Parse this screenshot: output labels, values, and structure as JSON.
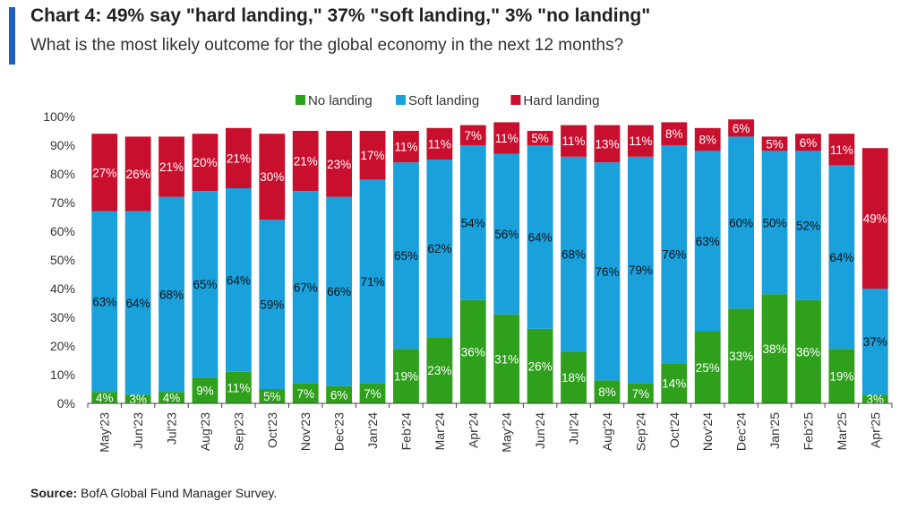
{
  "title": "Chart 4: 49% say \"hard landing,\" 37% \"soft landing,\" 3% \"no landing\"",
  "subtitle": "What is the most likely outcome for the global economy in the next 12 months?",
  "source_label": "Source:",
  "source_text": " BofA Global Fund Manager Survey.",
  "chart_data": {
    "type": "bar",
    "stacked": true,
    "categories": [
      "May'23",
      "Jun'23",
      "Jul'23",
      "Aug'23",
      "Sep'23",
      "Oct'23",
      "Nov'23",
      "Dec'23",
      "Jan'24",
      "Feb'24",
      "Mar'24",
      "Apr'24",
      "May'24",
      "Jun'24",
      "Jul'24",
      "Aug'24",
      "Sep'24",
      "Oct'24",
      "Nov'24",
      "Dec'24",
      "Jan'25",
      "Feb'25",
      "Mar'25",
      "Apr'25"
    ],
    "series": [
      {
        "name": "No landing",
        "color": "#2ea01c",
        "values": [
          4,
          3,
          4,
          9,
          11,
          5,
          7,
          6,
          7,
          19,
          23,
          36,
          31,
          26,
          18,
          8,
          7,
          14,
          25,
          33,
          38,
          36,
          19,
          3
        ]
      },
      {
        "name": "Soft landing",
        "color": "#1aa1dc",
        "values": [
          63,
          64,
          68,
          65,
          64,
          59,
          67,
          66,
          71,
          65,
          62,
          54,
          56,
          64,
          68,
          76,
          79,
          76,
          63,
          60,
          50,
          52,
          64,
          37
        ]
      },
      {
        "name": "Hard landing",
        "color": "#c8102e",
        "values": [
          27,
          26,
          21,
          20,
          21,
          30,
          21,
          23,
          17,
          11,
          11,
          7,
          11,
          5,
          11,
          13,
          11,
          8,
          8,
          6,
          5,
          6,
          11,
          49
        ]
      }
    ],
    "ylim": [
      0,
      100
    ],
    "yticks": [
      "0%",
      "10%",
      "20%",
      "30%",
      "40%",
      "50%",
      "60%",
      "70%",
      "80%",
      "90%",
      "100%"
    ],
    "legend_position": "top-center",
    "value_suffix": "%"
  }
}
